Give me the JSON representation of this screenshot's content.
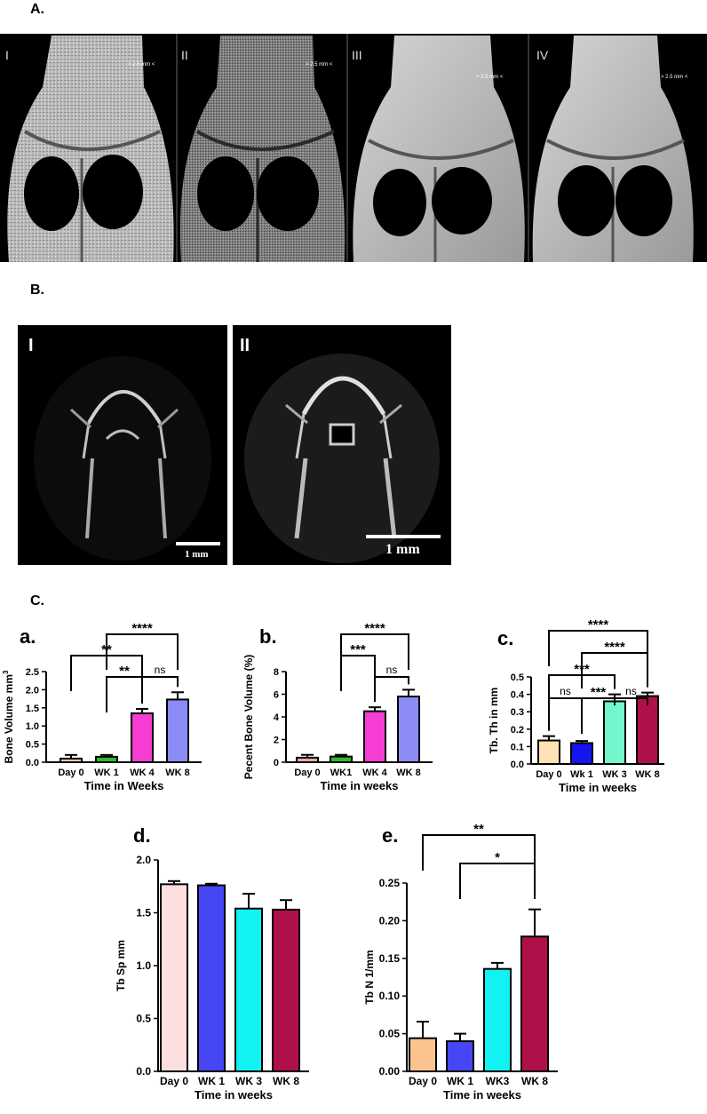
{
  "labels": {
    "sectionA": "A.",
    "sectionB": "B.",
    "sectionC": "C."
  },
  "panelA": [
    {
      "roman": "I",
      "scale": "> 2.5 mm <"
    },
    {
      "roman": "II",
      "scale": "> 2.5 mm <"
    },
    {
      "roman": "III",
      "scale": "> 2.5 mm <"
    },
    {
      "roman": "IV",
      "scale": "> 2.5 mm <"
    }
  ],
  "panelB": [
    {
      "roman": "I",
      "scalebar": "1 mm"
    },
    {
      "roman": "II",
      "scalebar": "1 mm"
    }
  ],
  "chart_data": [
    {
      "id": "a",
      "letter": "a.",
      "type": "bar",
      "categories": [
        "Day 0",
        "WK 1",
        "WK 4",
        "WK 8"
      ],
      "values": [
        0.1,
        0.15,
        1.35,
        1.73
      ],
      "errors": [
        0.1,
        0.05,
        0.12,
        0.2
      ],
      "colors": [
        "#f9c9a6",
        "#2eb82e",
        "#f53dd4",
        "#8b8bf5"
      ],
      "xlabel": "Time in Weeks",
      "ylabel": "Bone Volume mm",
      "ylabel_sup": "3",
      "ylim": [
        0,
        2.5
      ],
      "yticks": [
        "0.0",
        "0.5",
        "1.0",
        "1.5",
        "2.0",
        "2.5"
      ],
      "brackets": [
        {
          "from": 1,
          "to": 3,
          "label": "****"
        },
        {
          "from": 0,
          "to": 2,
          "label": "**"
        },
        {
          "from": 1,
          "to": 2,
          "label": "**"
        },
        {
          "from": 2,
          "to": 3,
          "label": "ns"
        }
      ]
    },
    {
      "id": "b",
      "letter": "b.",
      "type": "bar",
      "categories": [
        "Day 0",
        "WK1",
        "WK 4",
        "WK 8"
      ],
      "values": [
        0.4,
        0.5,
        4.5,
        5.8
      ],
      "errors": [
        0.25,
        0.15,
        0.35,
        0.6
      ],
      "colors": [
        "#f7a8a8",
        "#2eb82e",
        "#f53dd4",
        "#8b8bf5"
      ],
      "xlabel": "Time in weeks",
      "ylabel": "Pecent Bone Volume (%)",
      "ylim": [
        0,
        8
      ],
      "yticks": [
        "0",
        "2",
        "4",
        "6",
        "8"
      ],
      "brackets": [
        {
          "from": 1,
          "to": 3,
          "label": "****"
        },
        {
          "from": 1,
          "to": 2,
          "label": "***"
        },
        {
          "from": 2,
          "to": 3,
          "label": "ns"
        }
      ]
    },
    {
      "id": "c",
      "letter": "c.",
      "type": "bar",
      "categories": [
        "Day 0",
        "Wk 1",
        "WK 3",
        "WK 8"
      ],
      "values": [
        0.135,
        0.12,
        0.36,
        0.39
      ],
      "errors": [
        0.025,
        0.012,
        0.04,
        0.02
      ],
      "colors": [
        "#fde2b5",
        "#1515f0",
        "#74f5cc",
        "#b0104a"
      ],
      "xlabel": "Time in weeks",
      "ylabel": "Tb. Th in mm",
      "ylim": [
        0,
        0.5
      ],
      "yticks": [
        "0.0",
        "0.1",
        "0.2",
        "0.3",
        "0.4",
        "0.5"
      ],
      "brackets": [
        {
          "from": 0,
          "to": 3,
          "label": "****"
        },
        {
          "from": 1,
          "to": 3,
          "label": "****"
        },
        {
          "from": 0,
          "to": 2,
          "label": "***"
        },
        {
          "from": 0,
          "to": 1,
          "label": "ns"
        },
        {
          "from": 1,
          "to": 2,
          "label": "***"
        },
        {
          "from": 2,
          "to": 3,
          "label": "ns"
        }
      ]
    },
    {
      "id": "d",
      "letter": "d.",
      "type": "bar",
      "categories": [
        "Day 0",
        "WK 1",
        "WK 3",
        "WK 8"
      ],
      "values": [
        1.77,
        1.76,
        1.54,
        1.53
      ],
      "errors": [
        0.03,
        0.015,
        0.14,
        0.09
      ],
      "colors": [
        "#fddede",
        "#4646f5",
        "#12f2f2",
        "#b0104a"
      ],
      "xlabel": "Time in weeks",
      "ylabel": "Tb  Sp mm",
      "ylim": [
        0,
        2.0
      ],
      "yticks": [
        "0.0",
        "0.5",
        "1.0",
        "1.5",
        "2.0"
      ],
      "brackets": []
    },
    {
      "id": "e",
      "letter": "e.",
      "type": "bar",
      "categories": [
        "Day 0",
        "WK 1",
        "WK3",
        "WK 8"
      ],
      "values": [
        0.044,
        0.04,
        0.136,
        0.179
      ],
      "errors": [
        0.022,
        0.01,
        0.008,
        0.036
      ],
      "colors": [
        "#fbc48e",
        "#4646f5",
        "#12f2f2",
        "#b0104a"
      ],
      "xlabel": "Time in weeks",
      "ylabel": "Tb N 1/mm",
      "ylim": [
        0,
        0.25
      ],
      "yticks": [
        "0.00",
        "0.05",
        "0.10",
        "0.15",
        "0.20",
        "0.25"
      ],
      "brackets": [
        {
          "from": 0,
          "to": 3,
          "label": "**"
        },
        {
          "from": 1,
          "to": 3,
          "label": "*"
        }
      ]
    }
  ]
}
